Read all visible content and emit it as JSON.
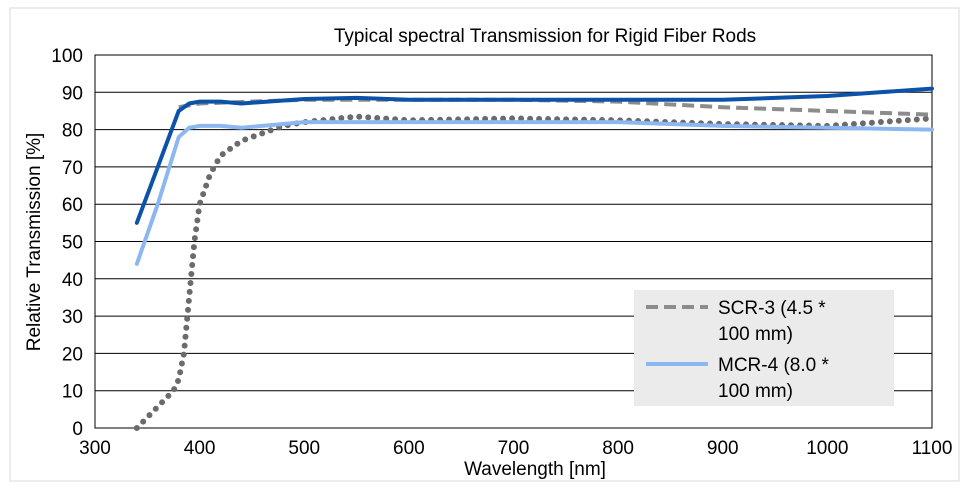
{
  "chart_data": {
    "type": "line",
    "title": "Typical spectral Transmission for Rigid Fiber Rods",
    "xlabel": "Wavelength [nm]",
    "ylabel": "Relative Transmission [%]",
    "xlim": [
      300,
      1100
    ],
    "ylim": [
      0,
      100
    ],
    "xticks": [
      300,
      400,
      500,
      600,
      700,
      800,
      900,
      1000,
      1100
    ],
    "yticks": [
      0,
      10,
      20,
      30,
      40,
      50,
      60,
      70,
      80,
      90,
      100
    ],
    "grid": "horizontal",
    "legend_position": "bottom-right",
    "series": [
      {
        "name": "",
        "color": "#6b6b6b",
        "style": "dotted",
        "x": [
          340,
          375,
          380,
          385,
          390,
          395,
          400,
          410,
          420,
          440,
          460,
          480,
          500,
          550,
          600,
          700,
          800,
          900,
          1000,
          1100
        ],
        "y": [
          0,
          10,
          13,
          20,
          35,
          50,
          60,
          68,
          73,
          77,
          79,
          81,
          82,
          83.5,
          82.5,
          83,
          82.5,
          81.5,
          81,
          83
        ]
      },
      {
        "name": "",
        "color": "#0b52a8",
        "style": "solid",
        "x": [
          340,
          360,
          380,
          390,
          400,
          420,
          440,
          500,
          550,
          600,
          700,
          800,
          900,
          950,
          1000,
          1050,
          1100
        ],
        "y": [
          55,
          70,
          85,
          87,
          87.5,
          87.5,
          87,
          88.2,
          88.5,
          88,
          88,
          88,
          88,
          88.5,
          89,
          90,
          91
        ]
      },
      {
        "name": "SCR-3 (4.5 * 100 mm)",
        "color": "#8c8c8c",
        "style": "dashed",
        "x": [
          380,
          400,
          500,
          600,
          700,
          800,
          900,
          1000,
          1100
        ],
        "y": [
          86,
          87,
          88,
          88,
          88,
          87.5,
          86,
          85,
          84
        ]
      },
      {
        "name": "MCR-4 (8.0 * 100 mm)",
        "color": "#8db7f0",
        "style": "solid",
        "x": [
          340,
          360,
          380,
          390,
          400,
          420,
          440,
          480,
          500,
          600,
          700,
          800,
          900,
          1000,
          1100
        ],
        "y": [
          44,
          60,
          78,
          80.5,
          81,
          81,
          80.5,
          81.5,
          82,
          82,
          82,
          82,
          81,
          80.5,
          80
        ]
      }
    ],
    "legend": {
      "entries": [
        {
          "line1": "SCR-3 (4.5 *",
          "line2": "100 mm)"
        },
        {
          "line1": "MCR-4 (8.0 *",
          "line2": "100 mm)"
        }
      ]
    }
  }
}
